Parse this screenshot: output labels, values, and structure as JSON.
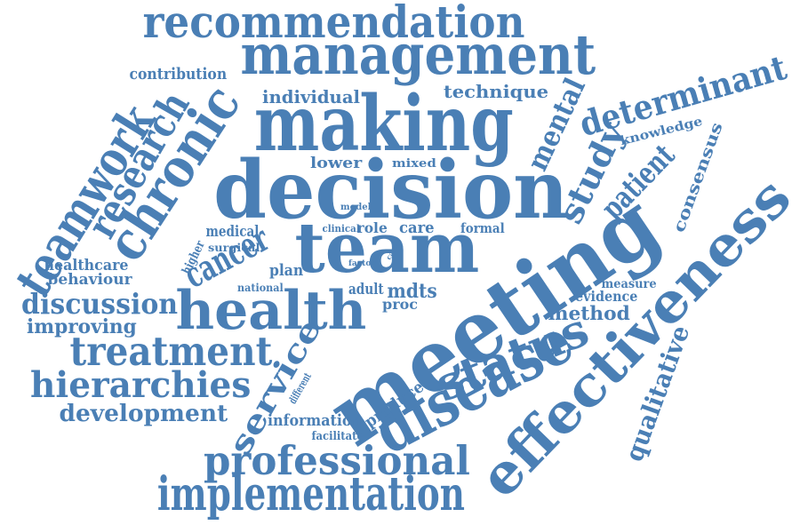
{
  "colors": {
    "word": "#4a7fb5",
    "background": "#ffffff"
  },
  "words": [
    "recommendation",
    "management",
    "contribution",
    "individual",
    "technique",
    "making",
    "chronic",
    "research",
    "teamwork",
    "determinant",
    "mental",
    "study",
    "knowledge",
    "consensus",
    "lower",
    "mixed",
    "decision",
    "patient",
    "model",
    "clinical",
    "role",
    "care",
    "formal",
    "medical",
    "surgical",
    "higher",
    "cancer",
    "team",
    "meeting",
    "effectiveness",
    "healthcare",
    "behaviour",
    "plan",
    "factor",
    "case",
    "national",
    "measure",
    "evidence",
    "adult",
    "mdts",
    "proc",
    "discussion",
    "health",
    "method",
    "improving",
    "treatment",
    "status",
    "service",
    "qualitative",
    "hierarchies",
    "different",
    "development",
    "information",
    "facilitate",
    "produce",
    "disease",
    "professional",
    "implementation"
  ]
}
